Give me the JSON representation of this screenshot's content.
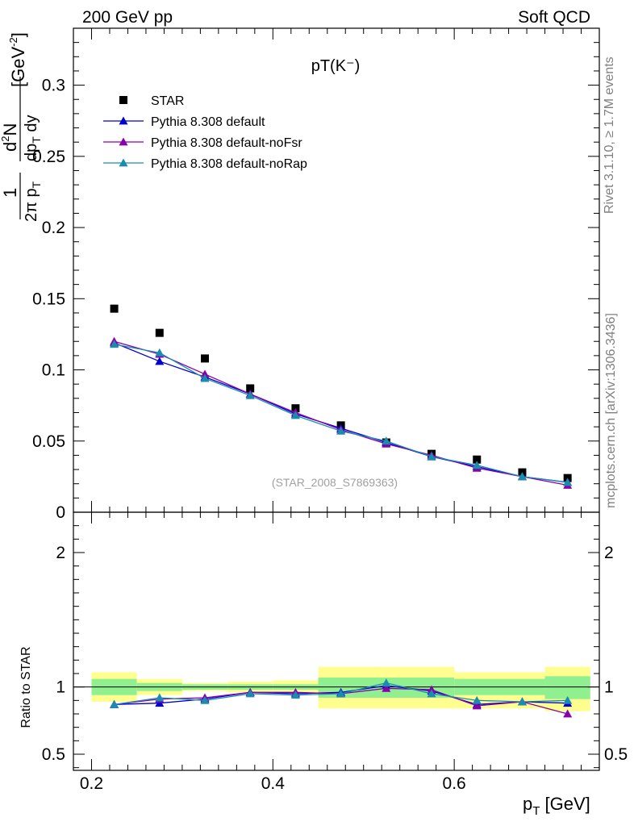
{
  "header": {
    "left": "200 GeV pp",
    "right": "Soft QCD"
  },
  "side_labels": {
    "top": "Rivet 3.1.10, ≥ 1.7M events",
    "bottom": "mcplots.cern.ch [arXiv:1306.3436]"
  },
  "chart_data": [
    {
      "type": "line",
      "title": "pT(K⁻)",
      "watermark": "(STAR_2008_S7869363)",
      "ylabel": "1/(2π p_T) d²N/(dp_T dy) [GeV⁻²]",
      "ylim": [
        0,
        0.34
      ],
      "yticks": [
        0,
        0.05,
        0.1,
        0.15,
        0.2,
        0.25,
        0.3
      ],
      "ytick_labels": [
        "0",
        "0.05",
        "0.1",
        "0.15",
        "0.2",
        "0.25",
        "0.3"
      ],
      "xlim": [
        0.18,
        0.76
      ],
      "x": [
        0.225,
        0.275,
        0.325,
        0.375,
        0.425,
        0.475,
        0.525,
        0.575,
        0.625,
        0.675,
        0.725
      ],
      "series": [
        {
          "name": "STAR",
          "marker": "square",
          "color": "#000000",
          "values": [
            0.143,
            0.126,
            0.108,
            0.087,
            0.073,
            0.061,
            0.049,
            0.041,
            0.037,
            0.028,
            0.024
          ]
        },
        {
          "name": "Pythia 8.308 default",
          "marker": "triangle",
          "color": "#0000cc",
          "values": [
            0.119,
            0.106,
            0.095,
            0.083,
            0.069,
            0.059,
            0.049,
            0.039,
            0.032,
            0.025,
            0.021
          ]
        },
        {
          "name": "Pythia 8.308 default-noFsr",
          "marker": "triangle",
          "color": "#8800aa",
          "values": [
            0.12,
            0.111,
            0.097,
            0.083,
            0.07,
            0.058,
            0.048,
            0.04,
            0.031,
            0.025,
            0.019
          ]
        },
        {
          "name": "Pythia 8.308 default-noRap",
          "marker": "triangle",
          "color": "#1a8cb0",
          "values": [
            0.118,
            0.112,
            0.094,
            0.082,
            0.068,
            0.057,
            0.05,
            0.039,
            0.033,
            0.025,
            0.021
          ]
        }
      ],
      "legend_position": "top-left"
    },
    {
      "type": "line",
      "ylabel": "Ratio to STAR",
      "xlabel": "p_T [GeV]",
      "ylim": [
        0.38,
        2.3
      ],
      "yticks": [
        0.5,
        1,
        2
      ],
      "ytick_labels": [
        "0.5",
        "1",
        "2"
      ],
      "xlim": [
        0.18,
        0.76
      ],
      "xticks": [
        0.2,
        0.4,
        0.6
      ],
      "xtick_labels": [
        "0.2",
        "0.4",
        "0.6"
      ],
      "x": [
        0.225,
        0.275,
        0.325,
        0.375,
        0.425,
        0.475,
        0.525,
        0.575,
        0.625,
        0.675,
        0.725
      ],
      "bins": [
        [
          0.2,
          0.25
        ],
        [
          0.25,
          0.3
        ],
        [
          0.3,
          0.35
        ],
        [
          0.35,
          0.4
        ],
        [
          0.4,
          0.45
        ],
        [
          0.45,
          0.6
        ],
        [
          0.6,
          0.7
        ],
        [
          0.7,
          0.75
        ]
      ],
      "band_inner": [
        [
          0.94,
          1.06
        ],
        [
          0.97,
          1.03
        ],
        [
          0.98,
          1.02
        ],
        [
          0.98,
          1.02
        ],
        [
          0.98,
          1.02
        ],
        [
          0.92,
          1.07
        ],
        [
          0.94,
          1.06
        ],
        [
          0.91,
          1.08
        ]
      ],
      "band_outer": [
        [
          0.89,
          1.11
        ],
        [
          0.94,
          1.06
        ],
        [
          0.97,
          1.03
        ],
        [
          0.96,
          1.04
        ],
        [
          0.95,
          1.05
        ],
        [
          0.84,
          1.15
        ],
        [
          0.84,
          1.11
        ],
        [
          0.82,
          1.15
        ]
      ],
      "band_colors": {
        "inner": "#90f090",
        "outer": "#ffff90"
      },
      "series": [
        {
          "name": "Pythia 8.308 default",
          "color": "#0000cc",
          "values": [
            0.87,
            0.88,
            0.91,
            0.96,
            0.95,
            0.96,
            1.01,
            0.97,
            0.87,
            0.89,
            0.88
          ]
        },
        {
          "name": "Pythia 8.308 default-noFsr",
          "color": "#8800aa",
          "values": [
            0.87,
            0.91,
            0.92,
            0.96,
            0.96,
            0.95,
            0.99,
            0.98,
            0.86,
            0.89,
            0.8
          ]
        },
        {
          "name": "Pythia 8.308 default-noRap",
          "color": "#1a8cb0",
          "values": [
            0.87,
            0.92,
            0.9,
            0.95,
            0.94,
            0.95,
            1.03,
            0.95,
            0.9,
            0.89,
            0.9
          ]
        }
      ]
    }
  ]
}
